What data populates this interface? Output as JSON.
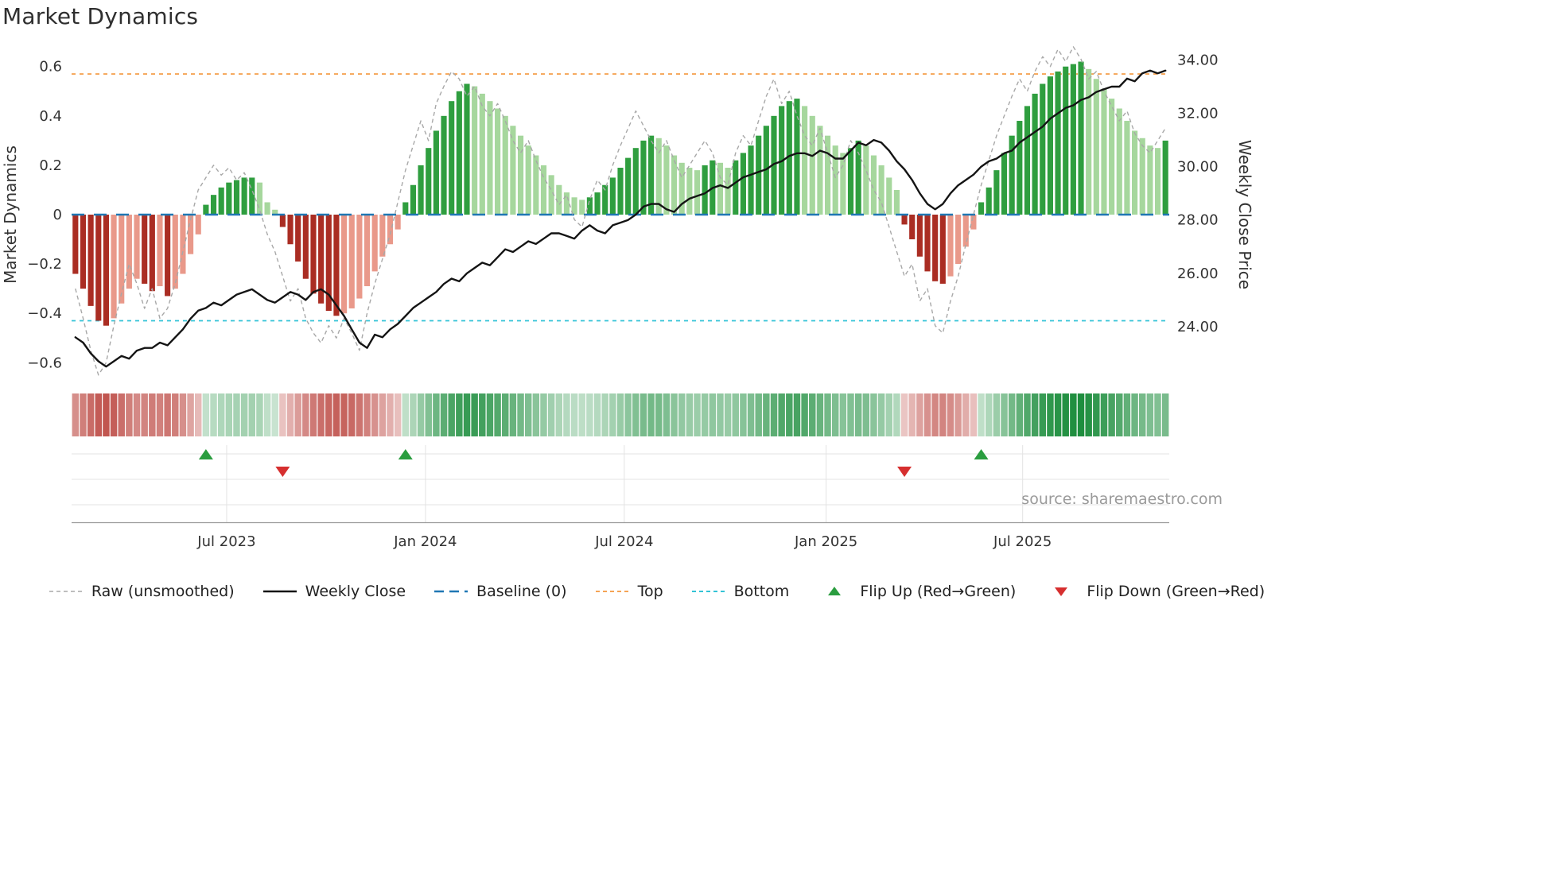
{
  "title": "Market Dynamics",
  "source": "source: sharemaestro.com",
  "axes": {
    "left_label": "Market Dynamics",
    "right_label": "Weekly Close Price",
    "left_ticks": [
      {
        "v": 0.6,
        "label": "0.6"
      },
      {
        "v": 0.4,
        "label": "0.4"
      },
      {
        "v": 0.2,
        "label": "0.2"
      },
      {
        "v": 0,
        "label": "0"
      },
      {
        "v": -0.2,
        "label": "−0.2"
      },
      {
        "v": -0.4,
        "label": "−0.4"
      },
      {
        "v": -0.6,
        "label": "−0.6"
      }
    ],
    "right_ticks": [
      {
        "v": 34,
        "label": "34.00"
      },
      {
        "v": 32,
        "label": "32.00"
      },
      {
        "v": 30,
        "label": "30.00"
      },
      {
        "v": 28,
        "label": "28.00"
      },
      {
        "v": 26,
        "label": "26.00"
      },
      {
        "v": 24,
        "label": "24.00"
      }
    ],
    "x_ticks": [
      {
        "pos": 20.2,
        "label": "Jul 2023"
      },
      {
        "pos": 46.1,
        "label": "Jan 2024"
      },
      {
        "pos": 72.0,
        "label": "Jul 2024"
      },
      {
        "pos": 98.3,
        "label": "Jan 2025"
      },
      {
        "pos": 123.9,
        "label": "Jul 2025"
      }
    ]
  },
  "chart_data": {
    "type": "combo: weekly oscillator bars + raw dashed line (left axis), weekly close line (right axis), heatmap strip, flip markers",
    "x_unit": "week index",
    "n_weeks": 143,
    "left_ylim": [
      -0.67,
      0.67
    ],
    "right_ylim": [
      22.0,
      34.4
    ],
    "baseline": 0,
    "top_level": 0.57,
    "bottom_level": -0.43,
    "oscillator": [
      -0.24,
      -0.3,
      -0.37,
      -0.43,
      -0.45,
      -0.42,
      -0.36,
      -0.3,
      -0.26,
      -0.28,
      -0.31,
      -0.29,
      -0.33,
      -0.3,
      -0.24,
      -0.16,
      -0.08,
      0.04,
      0.08,
      0.11,
      0.13,
      0.14,
      0.15,
      0.15,
      0.13,
      0.05,
      0.02,
      -0.05,
      -0.12,
      -0.19,
      -0.26,
      -0.32,
      -0.36,
      -0.39,
      -0.41,
      -0.4,
      -0.38,
      -0.34,
      -0.29,
      -0.23,
      -0.17,
      -0.12,
      -0.06,
      0.05,
      0.12,
      0.2,
      0.27,
      0.34,
      0.4,
      0.46,
      0.5,
      0.53,
      0.52,
      0.49,
      0.46,
      0.43,
      0.4,
      0.36,
      0.32,
      0.28,
      0.24,
      0.2,
      0.16,
      0.12,
      0.09,
      0.07,
      0.06,
      0.07,
      0.09,
      0.12,
      0.15,
      0.19,
      0.23,
      0.27,
      0.3,
      0.32,
      0.31,
      0.28,
      0.24,
      0.21,
      0.19,
      0.18,
      0.2,
      0.22,
      0.21,
      0.19,
      0.22,
      0.25,
      0.28,
      0.32,
      0.36,
      0.4,
      0.44,
      0.46,
      0.47,
      0.44,
      0.4,
      0.36,
      0.32,
      0.28,
      0.25,
      0.27,
      0.3,
      0.28,
      0.24,
      0.2,
      0.15,
      0.1,
      -0.04,
      -0.1,
      -0.17,
      -0.23,
      -0.27,
      -0.28,
      -0.25,
      -0.2,
      -0.13,
      -0.06,
      0.05,
      0.11,
      0.18,
      0.25,
      0.32,
      0.38,
      0.44,
      0.49,
      0.53,
      0.56,
      0.58,
      0.6,
      0.61,
      0.62,
      0.59,
      0.55,
      0.51,
      0.47,
      0.43,
      0.38,
      0.34,
      0.31,
      0.28,
      0.27,
      0.3
    ],
    "raw": [
      -0.3,
      -0.42,
      -0.55,
      -0.65,
      -0.6,
      -0.45,
      -0.32,
      -0.2,
      -0.28,
      -0.38,
      -0.3,
      -0.42,
      -0.38,
      -0.28,
      -0.15,
      -0.02,
      0.1,
      0.15,
      0.2,
      0.16,
      0.19,
      0.14,
      0.17,
      0.1,
      0.02,
      -0.08,
      -0.15,
      -0.25,
      -0.35,
      -0.3,
      -0.42,
      -0.48,
      -0.52,
      -0.45,
      -0.5,
      -0.42,
      -0.48,
      -0.55,
      -0.4,
      -0.28,
      -0.18,
      -0.08,
      0.05,
      0.18,
      0.28,
      0.38,
      0.3,
      0.45,
      0.52,
      0.58,
      0.55,
      0.48,
      0.52,
      0.44,
      0.4,
      0.45,
      0.38,
      0.3,
      0.25,
      0.3,
      0.22,
      0.15,
      0.1,
      0.04,
      0.08,
      -0.02,
      -0.05,
      0.06,
      0.14,
      0.1,
      0.2,
      0.28,
      0.35,
      0.42,
      0.36,
      0.3,
      0.25,
      0.3,
      0.22,
      0.15,
      0.2,
      0.25,
      0.3,
      0.25,
      0.15,
      0.12,
      0.25,
      0.32,
      0.28,
      0.38,
      0.48,
      0.55,
      0.45,
      0.5,
      0.4,
      0.32,
      0.28,
      0.35,
      0.25,
      0.15,
      0.2,
      0.3,
      0.25,
      0.18,
      0.1,
      0.05,
      -0.05,
      -0.15,
      -0.25,
      -0.2,
      -0.35,
      -0.3,
      -0.45,
      -0.48,
      -0.35,
      -0.25,
      -0.12,
      0.0,
      0.12,
      0.22,
      0.32,
      0.4,
      0.48,
      0.55,
      0.5,
      0.58,
      0.64,
      0.6,
      0.67,
      0.62,
      0.68,
      0.63,
      0.55,
      0.58,
      0.5,
      0.44,
      0.38,
      0.42,
      0.33,
      0.28,
      0.25,
      0.3,
      0.35
    ],
    "weekly_close": [
      23.6,
      23.4,
      23.0,
      22.7,
      22.5,
      22.7,
      22.9,
      22.8,
      23.1,
      23.2,
      23.2,
      23.4,
      23.3,
      23.6,
      23.9,
      24.3,
      24.6,
      24.7,
      24.9,
      24.8,
      25.0,
      25.2,
      25.3,
      25.4,
      25.2,
      25.0,
      24.9,
      25.1,
      25.3,
      25.2,
      25.0,
      25.3,
      25.4,
      25.2,
      24.8,
      24.4,
      23.9,
      23.4,
      23.2,
      23.7,
      23.6,
      23.9,
      24.1,
      24.4,
      24.7,
      24.9,
      25.1,
      25.3,
      25.6,
      25.8,
      25.7,
      26.0,
      26.2,
      26.4,
      26.3,
      26.6,
      26.9,
      26.8,
      27.0,
      27.2,
      27.1,
      27.3,
      27.5,
      27.5,
      27.4,
      27.3,
      27.6,
      27.8,
      27.6,
      27.5,
      27.8,
      27.9,
      28.0,
      28.2,
      28.5,
      28.6,
      28.6,
      28.4,
      28.3,
      28.6,
      28.8,
      28.9,
      29.0,
      29.2,
      29.3,
      29.2,
      29.4,
      29.6,
      29.7,
      29.8,
      29.9,
      30.1,
      30.2,
      30.4,
      30.5,
      30.5,
      30.4,
      30.6,
      30.5,
      30.3,
      30.3,
      30.6,
      30.9,
      30.8,
      31.0,
      30.9,
      30.6,
      30.2,
      29.9,
      29.5,
      29.0,
      28.6,
      28.4,
      28.6,
      29.0,
      29.3,
      29.5,
      29.7,
      30.0,
      30.2,
      30.3,
      30.5,
      30.6,
      30.9,
      31.1,
      31.3,
      31.5,
      31.8,
      32.0,
      32.2,
      32.3,
      32.5,
      32.6,
      32.8,
      32.9,
      33.0,
      33.0,
      33.3,
      33.2,
      33.5,
      33.6,
      33.5,
      33.6
    ],
    "flip_up_indices": [
      17,
      43,
      118
    ],
    "flip_down_indices": [
      27,
      108
    ]
  },
  "colors": {
    "bar_up_strong": "#2f9e3f",
    "bar_up_weak": "#a6d79d",
    "bar_down_strong": "#aa2d23",
    "bar_down_weak": "#e9998a",
    "raw_line": "#a8a8a8",
    "close_line": "#141414",
    "baseline": "#1f77b4",
    "top": "#f5a455",
    "bottom": "#33c3d6",
    "flip_up": "#2a9d3f",
    "flip_down": "#d62f2f",
    "heat_up": "#1e8e3e",
    "heat_down": "#b02821",
    "grid": "#e3e3e3",
    "spine": "#9a9a9a",
    "tick_text": "#333333",
    "source_text": "#9a9a9a"
  },
  "legend": [
    {
      "label": "Raw (unsmoothed)",
      "glyph": "line",
      "color": "#a8a8a8",
      "dash": "5 4",
      "width": 1.6
    },
    {
      "label": "Weekly Close",
      "glyph": "line",
      "color": "#141414",
      "dash": "",
      "width": 2.6
    },
    {
      "label": "Baseline (0)",
      "glyph": "line",
      "color": "#1f77b4",
      "dash": "12 7",
      "width": 2.6
    },
    {
      "label": "Top",
      "glyph": "line",
      "color": "#f5a455",
      "dash": "5 4",
      "width": 2
    },
    {
      "label": "Bottom",
      "glyph": "line",
      "color": "#33c3d6",
      "dash": "5 4",
      "width": 2
    },
    {
      "label": "Flip Up (Red→Green)",
      "glyph": "triangle-up",
      "color": "#2a9d3f"
    },
    {
      "label": "Flip Down (Green→Red)",
      "glyph": "triangle-down",
      "color": "#d62f2f"
    }
  ]
}
